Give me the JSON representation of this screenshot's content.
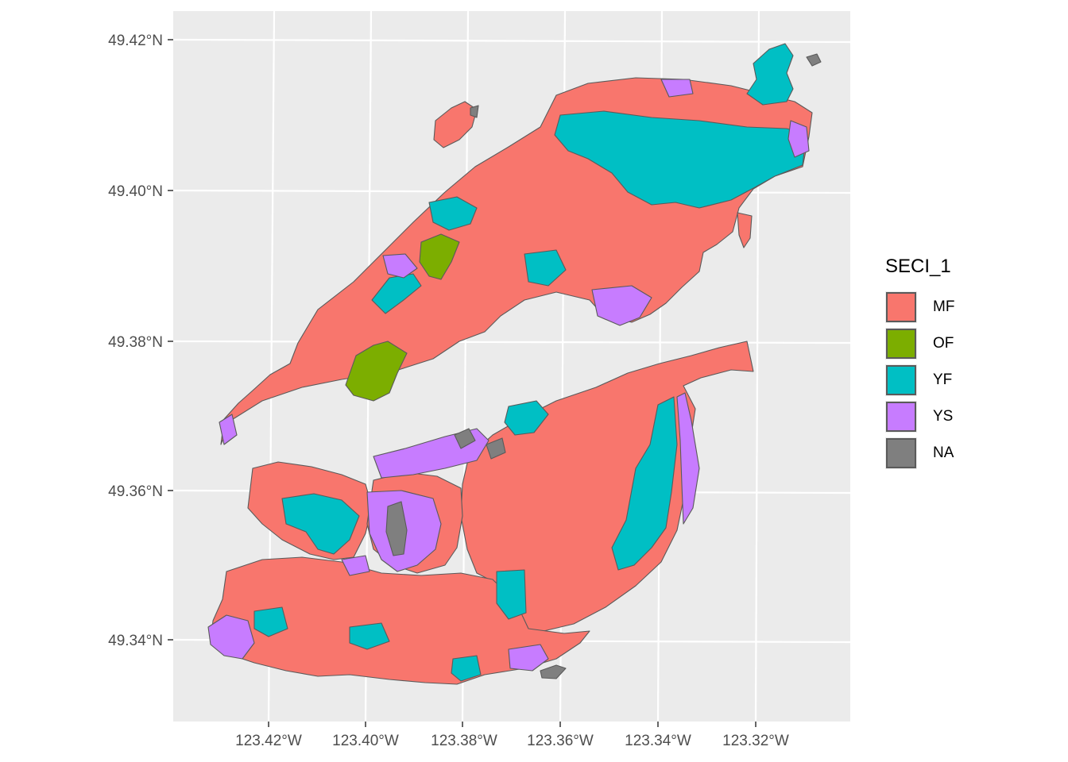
{
  "axes": {
    "y_ticks": [
      "49.42°N",
      "49.40°N",
      "49.38°N",
      "49.36°N",
      "49.34°N"
    ],
    "x_ticks": [
      "123.42°W",
      "123.40°W",
      "123.38°W",
      "123.36°W",
      "123.34°W",
      "123.32°W"
    ]
  },
  "legend": {
    "title": "SECI_1",
    "items": [
      {
        "label": "MF",
        "color": "#F8766D"
      },
      {
        "label": "OF",
        "color": "#7CAE00"
      },
      {
        "label": "YF",
        "color": "#00BFC4"
      },
      {
        "label": "YS",
        "color": "#C77CFF"
      },
      {
        "label": "NA",
        "color": "#7F7F7F"
      }
    ]
  },
  "colors": {
    "panel_background": "#EBEBEB",
    "grid": "#FFFFFF",
    "polygon_border": "#5A5A5A"
  }
}
